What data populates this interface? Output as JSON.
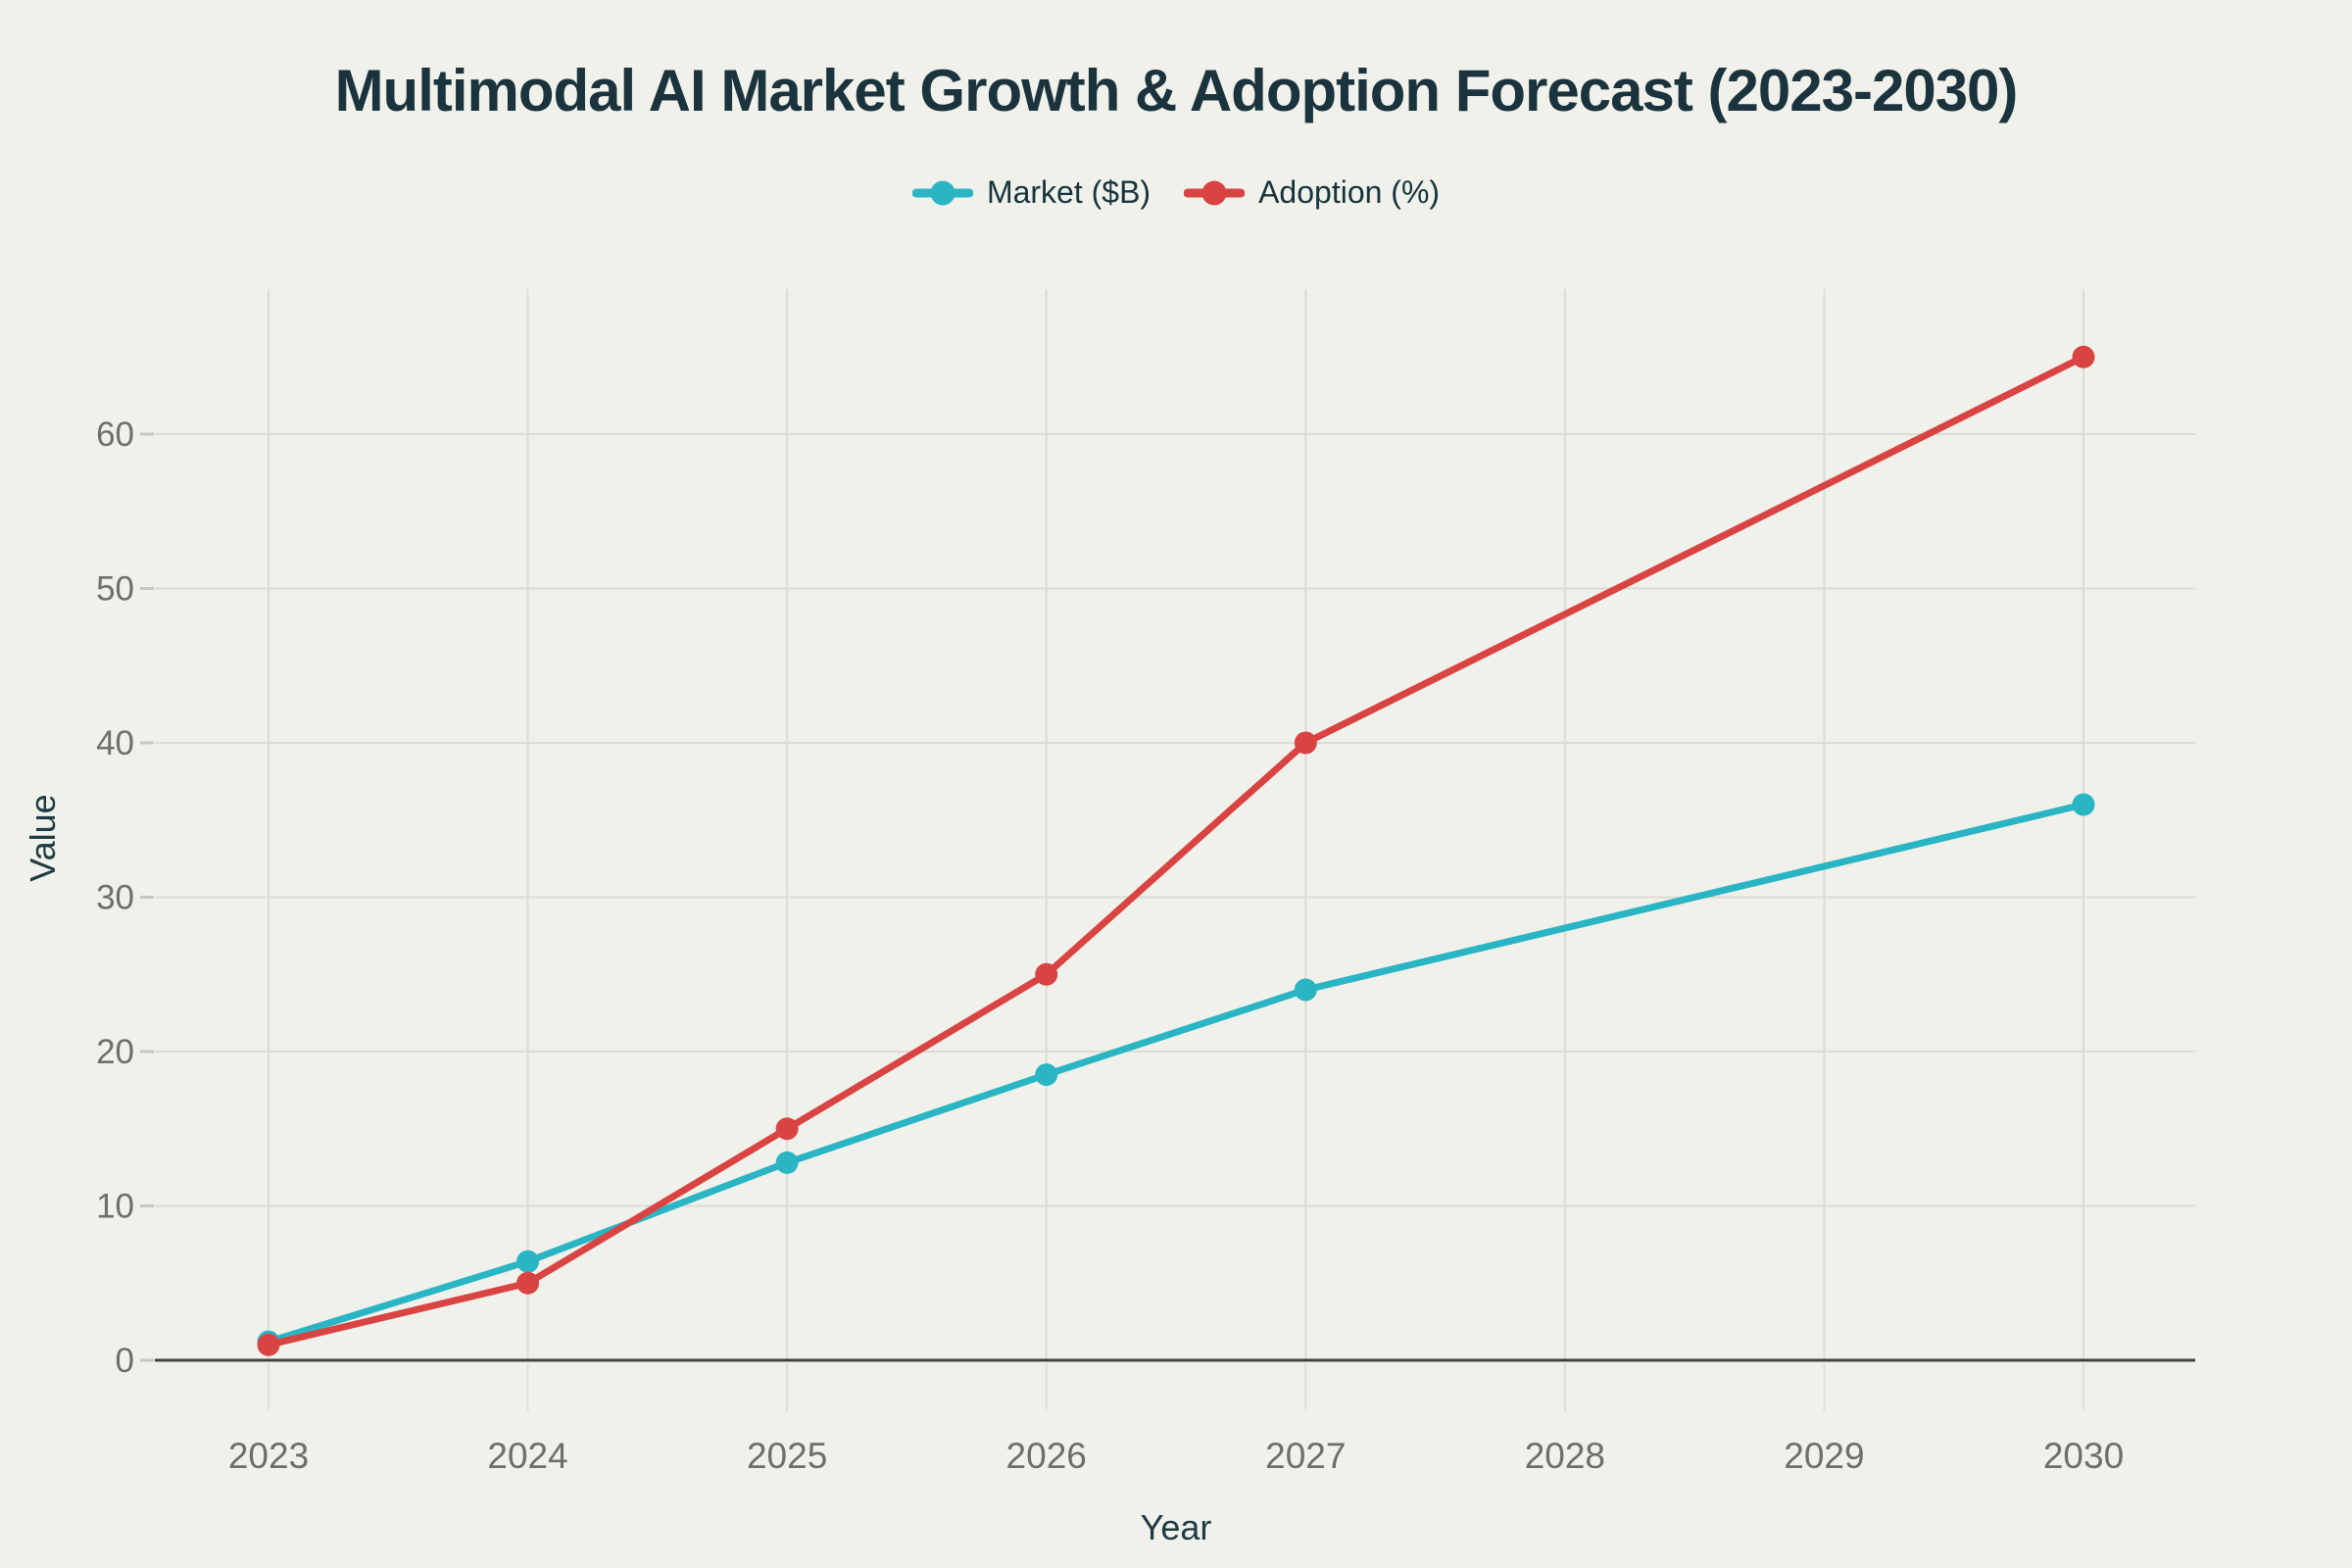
{
  "colors": {
    "background": "#f1f1eb",
    "grid": "#dcdcd4",
    "axis_line": "#42423e",
    "tick_mark": "#c7c7bf",
    "tick_label": "#6e6e6a",
    "title": "#1a333c",
    "axis_title": "#1e3a43",
    "series_market": "#2ab5c5",
    "series_adoption": "#d94442"
  },
  "chart_data": {
    "type": "line",
    "title": "Multimodal AI Market Growth & Adoption Forecast (2023-2030)",
    "xlabel": "Year",
    "ylabel": "Value",
    "x_ticks": [
      2023,
      2024,
      2025,
      2026,
      2027,
      2028,
      2029,
      2030
    ],
    "y_ticks": [
      0,
      10,
      20,
      30,
      40,
      50,
      60
    ],
    "xlim": [
      2023,
      2030
    ],
    "ylim": [
      0,
      69.4
    ],
    "grid": true,
    "legend_position": "top-center",
    "marker": "circle",
    "series": [
      {
        "name": "Market ($B)",
        "color": "#2ab5c5",
        "points": [
          [
            2023,
            1.2
          ],
          [
            2024,
            6.4
          ],
          [
            2025,
            12.8
          ],
          [
            2026,
            18.5
          ],
          [
            2027,
            24
          ],
          [
            2030,
            36
          ]
        ]
      },
      {
        "name": "Adoption (%)",
        "color": "#d94442",
        "points": [
          [
            2023,
            1
          ],
          [
            2024,
            5
          ],
          [
            2025,
            15
          ],
          [
            2026,
            25
          ],
          [
            2027,
            40
          ],
          [
            2030,
            65
          ]
        ]
      }
    ]
  }
}
